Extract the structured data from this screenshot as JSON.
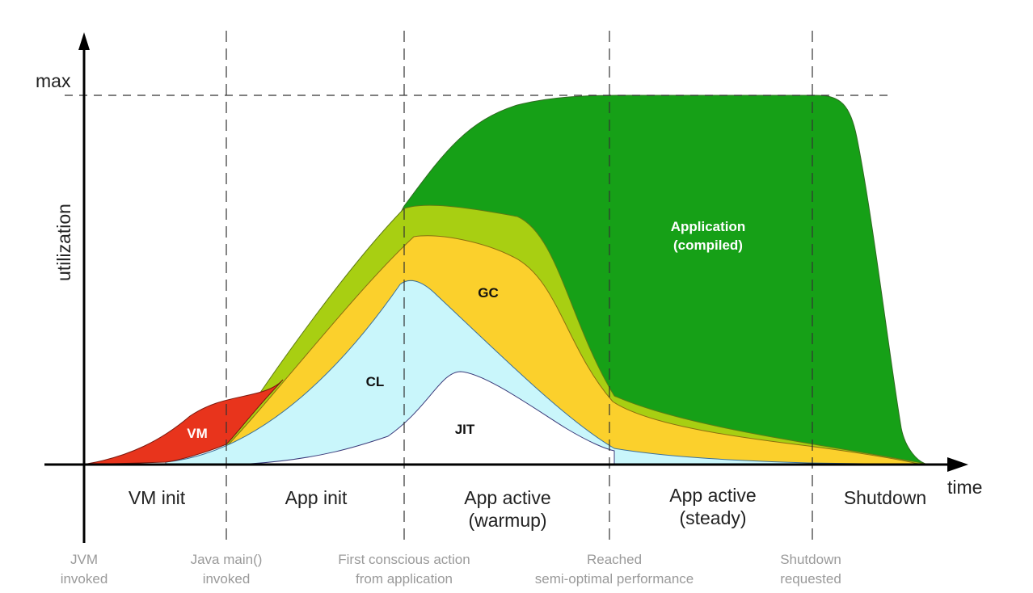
{
  "axes": {
    "y_label": "utilization",
    "y_max_label": "max",
    "x_label": "time"
  },
  "phases": [
    {
      "lines": [
        "VM init"
      ]
    },
    {
      "lines": [
        "App init"
      ]
    },
    {
      "lines": [
        "App active",
        "(warmup)"
      ]
    },
    {
      "lines": [
        "App active",
        "(steady)"
      ]
    },
    {
      "lines": [
        "Shutdown"
      ]
    }
  ],
  "events": [
    {
      "lines": [
        "JVM",
        "invoked"
      ]
    },
    {
      "lines": [
        "Java main()",
        "invoked"
      ]
    },
    {
      "lines": [
        "First conscious action",
        "from application"
      ]
    },
    {
      "lines": [
        "Reached",
        "semi-optimal performance"
      ]
    },
    {
      "lines": [
        "Shutdown",
        "requested"
      ]
    }
  ],
  "regions": {
    "vm": {
      "lines": [
        "VM"
      ],
      "color": "#e8341c",
      "text_color": "#ffffff"
    },
    "cl": {
      "lines": [
        "CL"
      ],
      "color": "#c9f6fb",
      "text_color": "#111111"
    },
    "gc": {
      "lines": [
        "GC"
      ],
      "color": "#fbd02c",
      "text_color": "#111111"
    },
    "jit": {
      "lines": [
        "JIT"
      ],
      "color": "#ffffff",
      "text_color": "#111111"
    },
    "app_interpreted": {
      "color": "#a8cf12"
    },
    "application": {
      "lines": [
        "Application",
        "(compiled)"
      ],
      "color": "#16a017",
      "text_color": "#ffffff"
    }
  }
}
